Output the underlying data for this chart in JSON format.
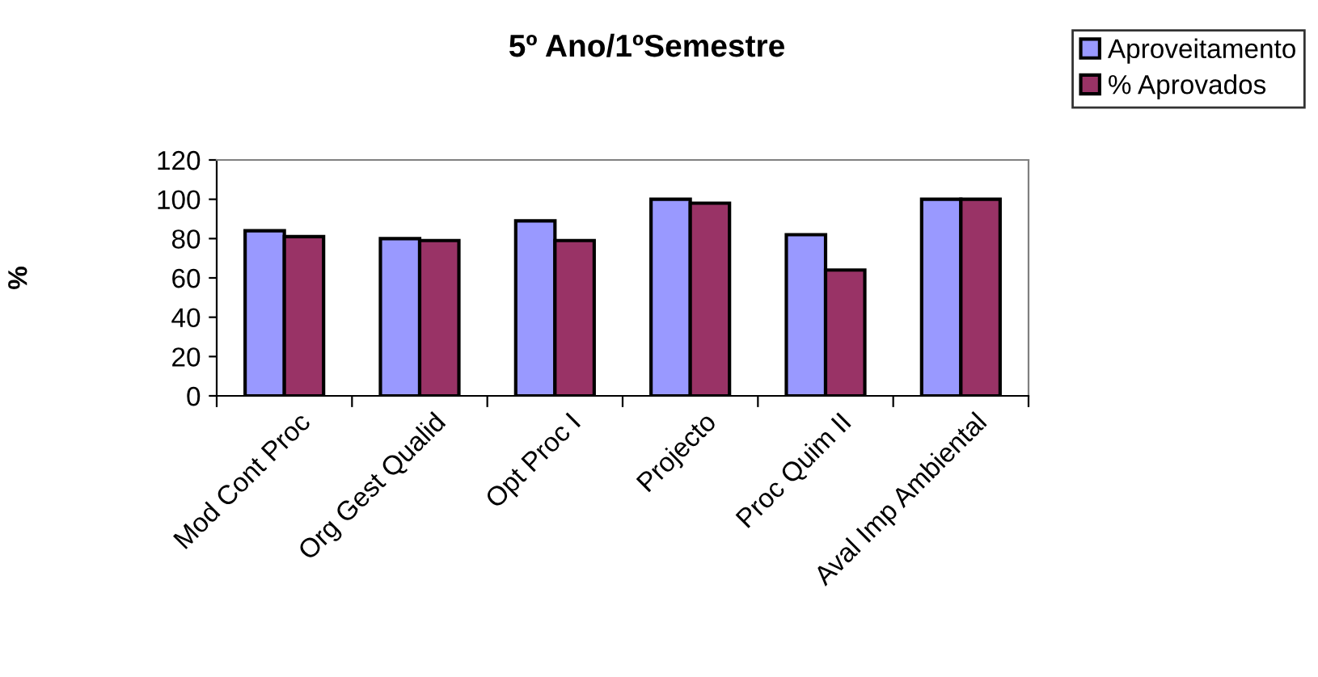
{
  "chart_data": {
    "type": "bar",
    "title": "5º Ano/1ºSemestre",
    "ylabel": "%",
    "categories": [
      "Mod Cont Proc",
      "Org Gest Qualid",
      "Opt Proc I",
      "Projecto",
      "Proc Quim II",
      "Aval Imp Ambiental"
    ],
    "series": [
      {
        "name": "Aproveitamento",
        "color": "#9999ff",
        "values": [
          84,
          80,
          89,
          100,
          82,
          100
        ]
      },
      {
        "name": "% Aprovados",
        "color": "#993366",
        "values": [
          81,
          79,
          79,
          98,
          64,
          100
        ]
      }
    ],
    "ylim": [
      0,
      120
    ],
    "yticks": [
      0,
      20,
      40,
      60,
      80,
      100,
      120
    ],
    "grid": false,
    "legend": "top right"
  }
}
